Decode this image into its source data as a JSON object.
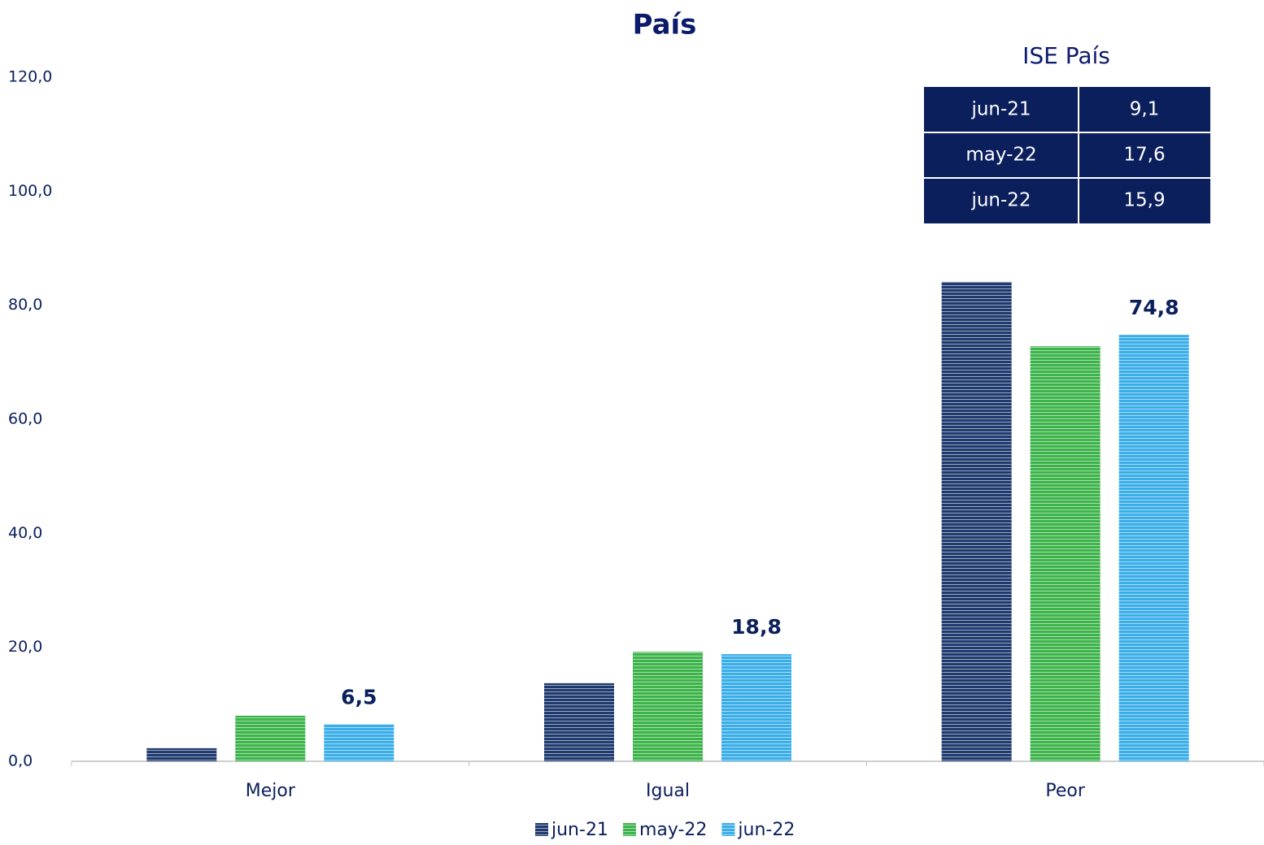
{
  "chart_data": {
    "type": "bar",
    "title": "País",
    "categories": [
      "Mejor",
      "Igual",
      "Peor"
    ],
    "series": [
      {
        "name": "jun-21",
        "color": "#1f3a6e",
        "values": [
          2.3,
          13.7,
          84.1
        ]
      },
      {
        "name": "may-22",
        "color": "#3cb44a",
        "values": [
          8.0,
          19.2,
          72.8
        ]
      },
      {
        "name": "jun-22",
        "color": "#3aaee8",
        "values": [
          6.5,
          18.8,
          74.8
        ],
        "value_labels": [
          "6,5",
          "18,8",
          "74,8"
        ]
      }
    ],
    "ylim": [
      0,
      120
    ],
    "yticks": [
      {
        "value": 0,
        "label": "0,0"
      },
      {
        "value": 20,
        "label": "20,0"
      },
      {
        "value": 40,
        "label": "40,0"
      },
      {
        "value": 60,
        "label": "60,0"
      },
      {
        "value": 80,
        "label": "80,0"
      },
      {
        "value": 100,
        "label": "100,0"
      },
      {
        "value": 120,
        "label": "120,0"
      }
    ],
    "grid": false,
    "legend": "bottom",
    "inset_table": {
      "title": "ISE País",
      "rows": [
        [
          "jun-21",
          "9,1"
        ],
        [
          "may-22",
          "17,6"
        ],
        [
          "jun-22",
          "15,9"
        ]
      ]
    }
  }
}
